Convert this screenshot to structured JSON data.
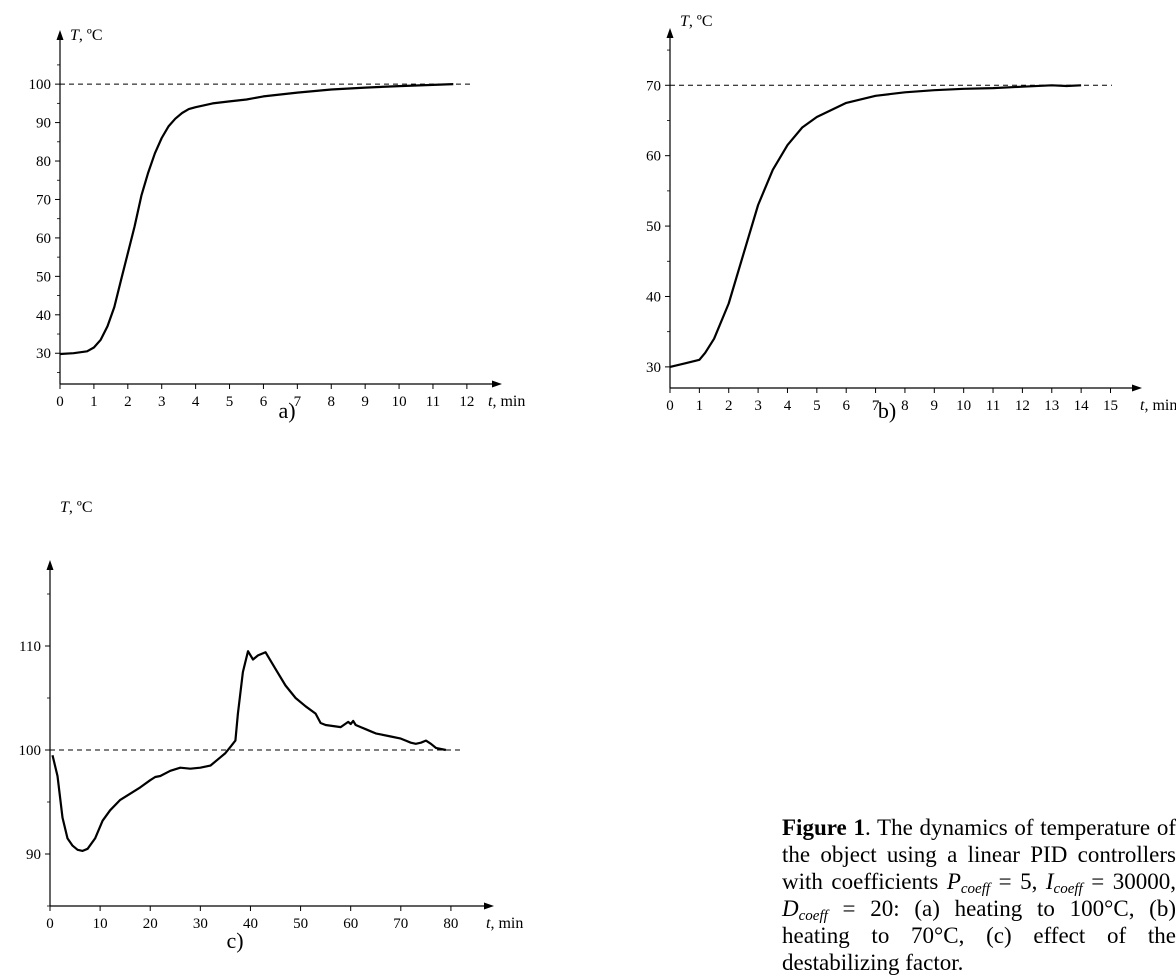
{
  "chart_data": [
    {
      "type": "line",
      "panel_label": "a)",
      "ylabel_symbol": "T",
      "ylabel_unit": ", ºC",
      "xlabel_symbol": "t",
      "xlabel_unit": ", min",
      "xlim": [
        0,
        12.8
      ],
      "ylim": [
        22,
        112
      ],
      "xticks": [
        0,
        1,
        2,
        3,
        4,
        5,
        6,
        7,
        8,
        9,
        10,
        11,
        12
      ],
      "yticks": [
        30,
        40,
        50,
        60,
        70,
        80,
        90,
        100
      ],
      "reference_line": 100,
      "series": [
        {
          "x": [
            0,
            0.4,
            0.8,
            1.0,
            1.2,
            1.4,
            1.6,
            1.8,
            2.0,
            2.2,
            2.4,
            2.6,
            2.8,
            3.0,
            3.2,
            3.4,
            3.6,
            3.8,
            4.0,
            4.5,
            5,
            5.5,
            6,
            7,
            8,
            9,
            10,
            11,
            11.6
          ],
          "y": [
            29.8,
            30,
            30.5,
            31.5,
            33.5,
            37,
            42,
            49,
            56,
            63,
            71,
            77,
            82,
            86,
            89,
            91,
            92.5,
            93.5,
            94,
            95,
            95.5,
            96,
            96.8,
            97.8,
            98.6,
            99.1,
            99.5,
            99.8,
            100
          ]
        }
      ]
    },
    {
      "type": "line",
      "panel_label": "b)",
      "ylabel_symbol": "T",
      "ylabel_unit": ", ºC",
      "xlabel_symbol": "t",
      "xlabel_unit": ", min",
      "xlim": [
        0,
        15.8
      ],
      "ylim": [
        27,
        77
      ],
      "xticks": [
        0,
        1,
        2,
        3,
        4,
        5,
        6,
        7,
        8,
        9,
        10,
        11,
        12,
        13,
        14,
        15
      ],
      "yticks": [
        30,
        40,
        50,
        60,
        70
      ],
      "reference_line": 70,
      "series": [
        {
          "x": [
            0,
            0.5,
            1.0,
            1.2,
            1.5,
            2,
            2.5,
            3,
            3.5,
            4,
            4.5,
            5,
            6,
            7,
            8,
            9,
            10,
            11,
            12,
            13,
            13.5,
            14
          ],
          "y": [
            30,
            30.5,
            31,
            32,
            34,
            39,
            46,
            53,
            58,
            61.5,
            64,
            65.5,
            67.5,
            68.5,
            69,
            69.3,
            69.5,
            69.6,
            69.8,
            70,
            69.9,
            70
          ]
        }
      ]
    },
    {
      "type": "line",
      "panel_label": "c)",
      "ylabel_symbol": "T",
      "ylabel_unit": ", ºC",
      "xlabel_symbol": "t",
      "xlabel_unit": ", min",
      "xlim": [
        0,
        87
      ],
      "ylim": [
        85,
        117.5
      ],
      "xticks": [
        0,
        10,
        20,
        30,
        40,
        50,
        60,
        70,
        80
      ],
      "yticks": [
        90,
        100,
        110
      ],
      "reference_line": 100,
      "series": [
        {
          "x": [
            0.5,
            1.5,
            2.5,
            3.5,
            4.5,
            5.5,
            6.5,
            7.5,
            9,
            10.5,
            12,
            14,
            16,
            18,
            20,
            21,
            22,
            24,
            26,
            28,
            30,
            32,
            34,
            35,
            36,
            37,
            37.5,
            38.5,
            39.5,
            40.5,
            41.5,
            43,
            45,
            47,
            49,
            51,
            53,
            54,
            55,
            58,
            59.5,
            60,
            60.5,
            61,
            62,
            63,
            64,
            65,
            66,
            68,
            70,
            71,
            72,
            73,
            74,
            75,
            76,
            77,
            78,
            79
          ],
          "y": [
            99.5,
            97.5,
            93.5,
            91.5,
            90.8,
            90.4,
            90.3,
            90.5,
            91.5,
            93.2,
            94.2,
            95.2,
            95.8,
            96.4,
            97.1,
            97.4,
            97.5,
            98,
            98.3,
            98.2,
            98.3,
            98.5,
            99.3,
            99.7,
            100.3,
            100.9,
            103.5,
            107.5,
            109.5,
            108.7,
            109.1,
            109.4,
            107.8,
            106.2,
            105,
            104.2,
            103.5,
            102.6,
            102.4,
            102.2,
            102.7,
            102.5,
            102.8,
            102.4,
            102.2,
            102,
            101.8,
            101.6,
            101.5,
            101.3,
            101.1,
            100.9,
            100.7,
            100.6,
            100.7,
            100.9,
            100.6,
            100.2,
            100.1,
            100
          ]
        }
      ]
    }
  ],
  "caption": {
    "figure_label": "Figure 1",
    "text_1": ". The dynamics of temperature of the object using a linear PID controllers with coefficients ",
    "p_letter": "P",
    "p_sub": "coeff",
    "p_val": " = 5, ",
    "i_letter": "I",
    "i_sub": "coeff",
    "i_val": " = 30000, ",
    "d_letter": "D",
    "d_sub": "coeff",
    "d_val": " = 20: (a) heating to 100°C, (b) heating to 70°C, (c) effect of the destabilizing factor."
  }
}
